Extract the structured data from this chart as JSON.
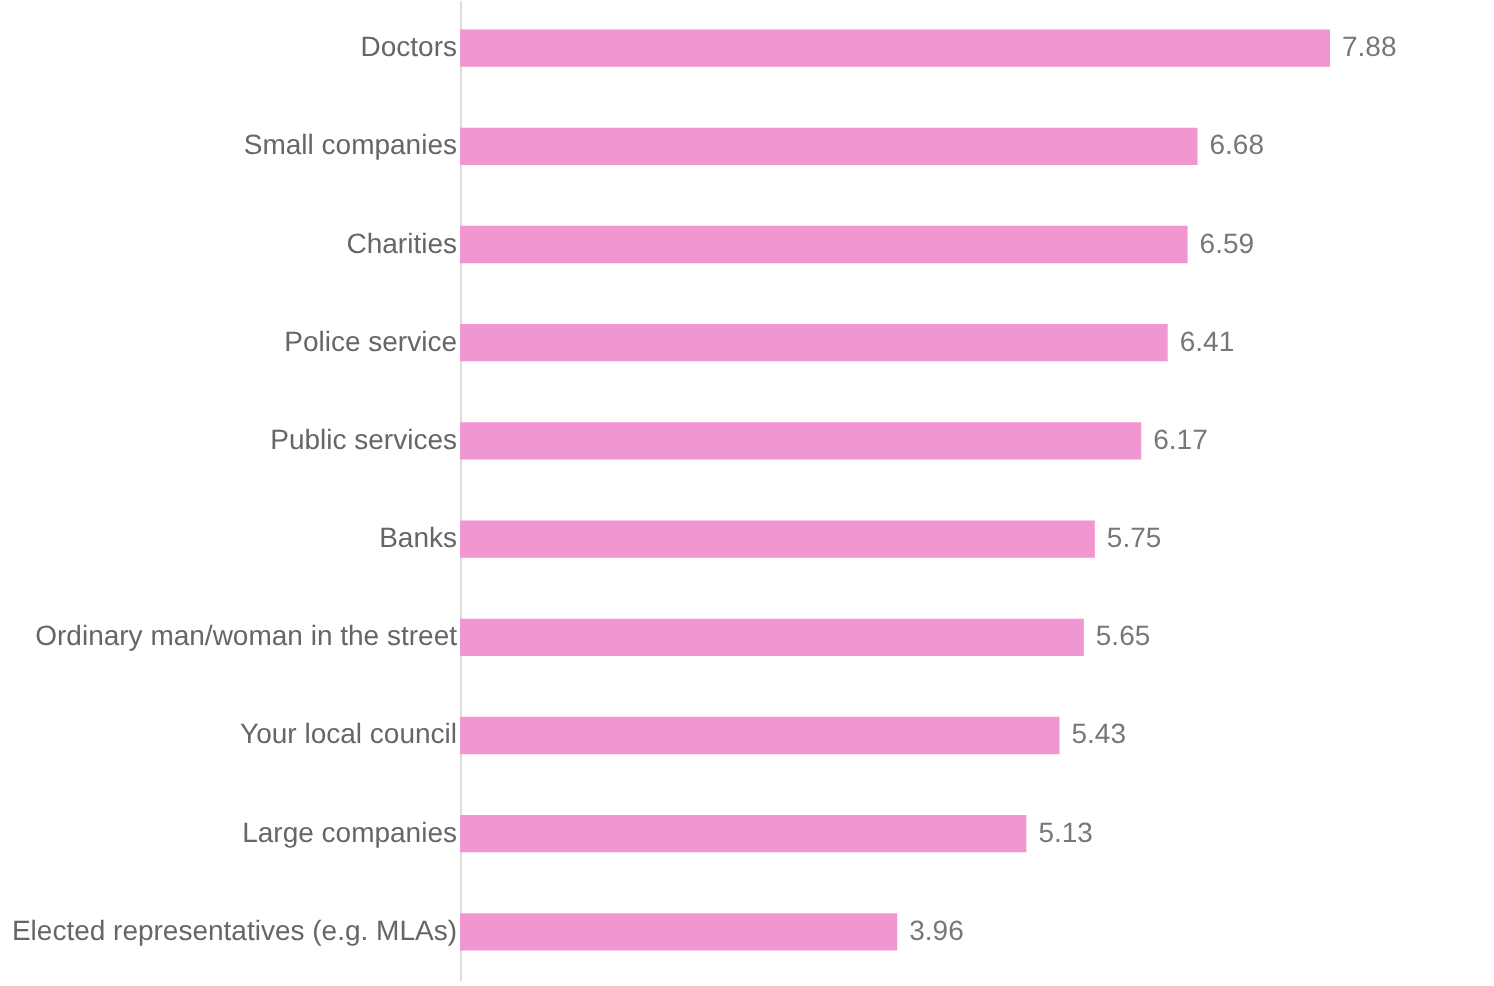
{
  "chart_data": {
    "type": "bar",
    "orientation": "horizontal",
    "data_labels": true,
    "grid": false,
    "categories": [
      "Doctors",
      "Small companies",
      "Charities",
      "Police service",
      "Public services",
      "Banks",
      "Ordinary man/woman in the street",
      "Your local council",
      "Large companies",
      "Elected representatives (e.g. MLAs)"
    ],
    "values": [
      7.88,
      6.68,
      6.59,
      6.41,
      6.17,
      5.75,
      5.65,
      5.43,
      5.13,
      3.96
    ],
    "color": "#f096d0"
  }
}
